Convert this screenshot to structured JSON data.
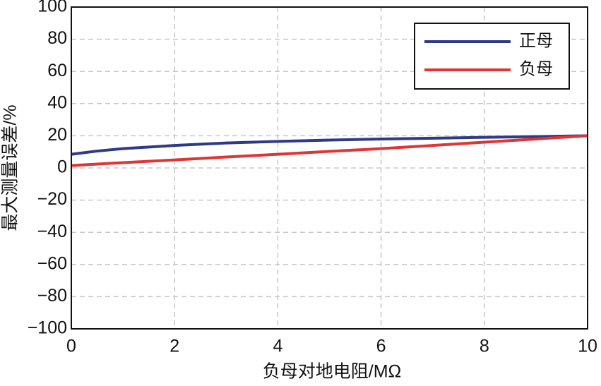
{
  "chart_data": {
    "type": "line",
    "xlabel": "负母对地电阻/MΩ",
    "ylabel": "最大测量误差/%",
    "x": [
      0,
      0.5,
      1,
      2,
      3,
      4,
      5,
      6,
      7,
      8,
      9,
      10
    ],
    "series": [
      {
        "name": "正母",
        "color": "#2e3a87",
        "values": [
          8.5,
          10.5,
          12,
          14,
          15.5,
          16.5,
          17.3,
          18,
          18.5,
          19,
          19.5,
          20
        ]
      },
      {
        "name": "负母",
        "color": "#e03535",
        "values": [
          1.5,
          2.4,
          3.3,
          5,
          6.8,
          8.5,
          10.3,
          12,
          14,
          16,
          18,
          20
        ]
      }
    ],
    "xlim": [
      0,
      10
    ],
    "xticks": [
      0,
      2,
      4,
      6,
      8,
      10
    ],
    "ylim": [
      -100,
      100
    ],
    "yticks": [
      {
        "value": -100,
        "label": "−100"
      },
      {
        "value": -80,
        "label": "−80"
      },
      {
        "value": -60,
        "label": "−60"
      },
      {
        "value": -40,
        "label": "−40"
      },
      {
        "value": -20,
        "label": "−20"
      },
      0,
      20,
      40,
      60,
      80,
      100
    ],
    "grid": true,
    "legend": "upper right"
  }
}
